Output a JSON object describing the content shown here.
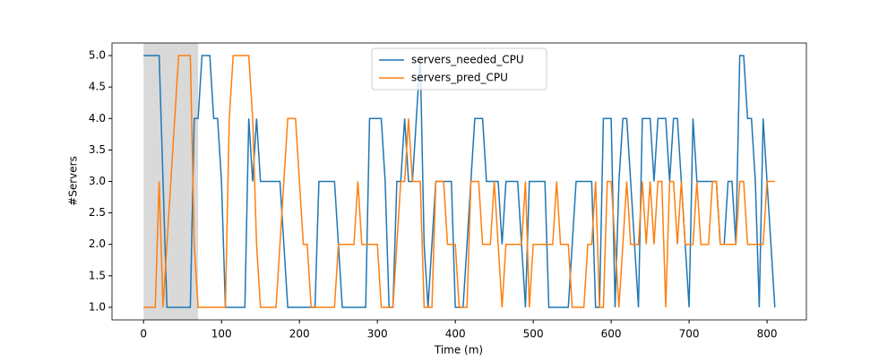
{
  "chart_data": {
    "type": "line",
    "x_label": "Time (m)",
    "y_label": "#Servers",
    "x": [
      0,
      5,
      10,
      15,
      20,
      25,
      30,
      35,
      40,
      45,
      50,
      55,
      60,
      65,
      70,
      75,
      80,
      85,
      90,
      95,
      100,
      105,
      110,
      115,
      120,
      125,
      130,
      135,
      140,
      145,
      150,
      155,
      160,
      165,
      170,
      175,
      180,
      185,
      190,
      195,
      200,
      205,
      210,
      215,
      220,
      225,
      230,
      235,
      240,
      245,
      250,
      255,
      260,
      265,
      270,
      275,
      280,
      285,
      290,
      295,
      300,
      305,
      310,
      315,
      320,
      325,
      330,
      335,
      340,
      345,
      350,
      355,
      360,
      365,
      370,
      375,
      380,
      385,
      390,
      395,
      400,
      405,
      410,
      415,
      420,
      425,
      430,
      435,
      440,
      445,
      450,
      455,
      460,
      465,
      470,
      475,
      480,
      485,
      490,
      495,
      500,
      505,
      510,
      515,
      520,
      525,
      530,
      535,
      540,
      545,
      550,
      555,
      560,
      565,
      570,
      575,
      580,
      585,
      590,
      595,
      600,
      605,
      610,
      615,
      620,
      625,
      630,
      635,
      640,
      645,
      650,
      655,
      660,
      665,
      670,
      675,
      680,
      685,
      690,
      695,
      700,
      705,
      710,
      715,
      720,
      725,
      730,
      735,
      740,
      745,
      750,
      755,
      760,
      765,
      770,
      775,
      780,
      785,
      790,
      795,
      800,
      805,
      810
    ],
    "series": [
      {
        "name": "servers_needed_CPU",
        "color": "#1f77b4",
        "values": [
          5,
          5,
          5,
          5,
          5,
          3,
          1,
          1,
          1,
          1,
          1,
          1,
          1,
          4,
          4,
          5,
          5,
          5,
          4,
          4,
          3,
          1,
          1,
          1,
          1,
          1,
          1,
          4,
          3,
          4,
          3,
          3,
          3,
          3,
          3,
          3,
          2,
          1,
          1,
          1,
          1,
          1,
          1,
          1,
          1,
          3,
          3,
          3,
          3,
          3,
          2,
          1,
          1,
          1,
          1,
          1,
          1,
          1,
          4,
          4,
          4,
          4,
          3,
          1,
          1,
          3,
          3,
          4,
          3,
          3,
          4,
          5,
          2,
          1,
          2,
          3,
          3,
          3,
          3,
          3,
          1,
          1,
          1,
          2,
          3,
          4,
          4,
          4,
          3,
          3,
          3,
          3,
          2,
          3,
          3,
          3,
          3,
          2,
          1,
          3,
          3,
          3,
          3,
          3,
          1,
          1,
          1,
          1,
          1,
          1,
          2,
          3,
          3,
          3,
          3,
          3,
          1,
          1,
          4,
          4,
          4,
          1,
          3,
          4,
          4,
          3,
          2,
          1,
          4,
          4,
          4,
          3,
          4,
          4,
          4,
          3,
          4,
          4,
          3,
          2,
          1,
          4,
          3,
          3,
          3,
          3,
          3,
          3,
          2,
          2,
          3,
          3,
          2,
          5,
          5,
          4,
          4,
          3,
          1,
          4,
          3,
          2,
          1
        ]
      },
      {
        "name": "servers_pred_CPU",
        "color": "#ff7f0e",
        "values": [
          1,
          1,
          1,
          1,
          3,
          1,
          2,
          3,
          4,
          5,
          5,
          5,
          5,
          2,
          1,
          1,
          1,
          1,
          1,
          1,
          1,
          1,
          4,
          5,
          5,
          5,
          5,
          5,
          4,
          2,
          1,
          1,
          1,
          1,
          1,
          2,
          3,
          4,
          4,
          4,
          3,
          2,
          2,
          1,
          1,
          1,
          1,
          1,
          1,
          1,
          2,
          2,
          2,
          2,
          2,
          3,
          2,
          2,
          2,
          2,
          2,
          1,
          1,
          1,
          1,
          2,
          3,
          3,
          4,
          3,
          3,
          3,
          1,
          1,
          1,
          3,
          3,
          3,
          2,
          2,
          2,
          1,
          1,
          1,
          3,
          3,
          3,
          2,
          2,
          2,
          3,
          2,
          1,
          2,
          2,
          2,
          2,
          2,
          3,
          1,
          2,
          2,
          2,
          2,
          2,
          2,
          3,
          2,
          2,
          2,
          1,
          1,
          1,
          1,
          2,
          2,
          3,
          1,
          1,
          3,
          3,
          2,
          1,
          2,
          3,
          2,
          2,
          2,
          3,
          2,
          3,
          2,
          3,
          3,
          1,
          3,
          3,
          2,
          3,
          2,
          2,
          2,
          3,
          2,
          2,
          2,
          3,
          3,
          2,
          2,
          2,
          2,
          2,
          3,
          3,
          2,
          2,
          2,
          2,
          2,
          3,
          3,
          3
        ]
      }
    ],
    "shaded_region": [
      0,
      70
    ],
    "shade_color": "#d9d9d9",
    "xlim": [
      -40.5,
      850.5
    ],
    "ylim": [
      0.8,
      5.2
    ],
    "xticks": [
      0,
      100,
      200,
      300,
      400,
      500,
      600,
      700,
      800
    ],
    "yticks": [
      {
        "value": 1,
        "label": "1.0"
      },
      {
        "value": 1.5,
        "label": "1.5"
      },
      {
        "value": 2,
        "label": "2.0"
      },
      {
        "value": 2.5,
        "label": "2.5"
      },
      {
        "value": 3,
        "label": "3.0"
      },
      {
        "value": 3.5,
        "label": "3.5"
      },
      {
        "value": 4,
        "label": "4.0"
      },
      {
        "value": 4.5,
        "label": "4.5"
      },
      {
        "value": 5,
        "label": "5.0"
      }
    ],
    "legend": "upper center"
  }
}
